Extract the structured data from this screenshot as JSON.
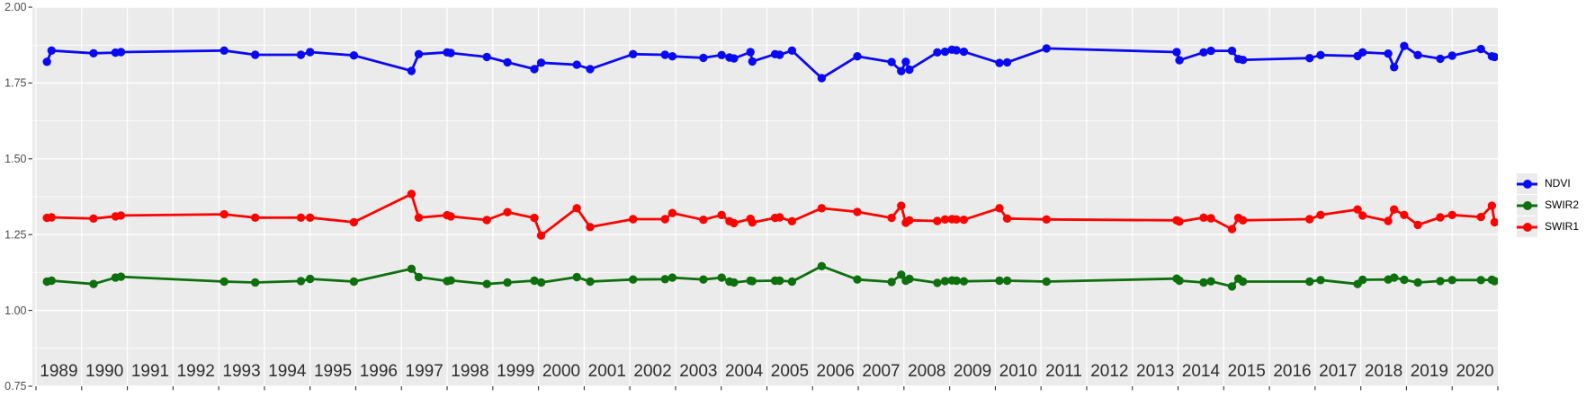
{
  "colors": {
    "page_bg": "#ffffff",
    "panel_bg": "#ebebeb",
    "grid": "#ffffff",
    "tick": "#333333",
    "y_axis_text": "#4d4d4d",
    "x_axis_text": "#2e2e2e",
    "ndvi": "#0a0af2",
    "swir2": "#0d700d",
    "swir1": "#fa0400"
  },
  "legend": {
    "items": [
      {
        "label": "NDVI"
      },
      {
        "label": "SWIR2"
      },
      {
        "label": "SWIR1"
      }
    ]
  },
  "chart_data": {
    "type": "line",
    "title": "",
    "xlabel": "",
    "ylabel": "",
    "grid": "white-on-gray",
    "legend_position": "right",
    "xlim": [
      1989,
      2021
    ],
    "ylim": [
      0.75,
      2.0
    ],
    "y_ticks": [
      0.75,
      1.0,
      1.25,
      1.5,
      1.75,
      2.0
    ],
    "y_tick_labels": [
      "0.75",
      "1.00",
      "1.25",
      "1.50",
      "1.75",
      "2.00"
    ],
    "y_minor_ticks": [
      0.875,
      1.125,
      1.375,
      1.625,
      1.875
    ],
    "x_tick_years": [
      1989,
      1990,
      1991,
      1992,
      1993,
      1994,
      1995,
      1996,
      1997,
      1998,
      1999,
      2000,
      2001,
      2002,
      2003,
      2004,
      2005,
      2006,
      2007,
      2008,
      2009,
      2010,
      2011,
      2012,
      2013,
      2014,
      2015,
      2016,
      2017,
      2018,
      2019,
      2020
    ],
    "x": [
      1989.24,
      1989.34,
      1990.26,
      1990.74,
      1990.86,
      1993.12,
      1993.8,
      1994.8,
      1995.0,
      1995.96,
      1997.22,
      1997.38,
      1998.0,
      1998.08,
      1998.87,
      1999.32,
      1999.91,
      2000.06,
      2000.84,
      2001.13,
      2002.07,
      2002.77,
      2002.93,
      2003.61,
      2004.01,
      2004.18,
      2004.28,
      2004.64,
      2004.68,
      2005.18,
      2005.28,
      2005.55,
      2006.2,
      2006.98,
      2007.73,
      2007.94,
      2008.04,
      2008.12,
      2008.73,
      2008.9,
      2009.05,
      2009.15,
      2009.31,
      2010.09,
      2010.26,
      2011.12,
      2013.97,
      2014.03,
      2014.56,
      2014.72,
      2015.18,
      2015.32,
      2015.42,
      2016.88,
      2017.12,
      2017.93,
      2018.04,
      2018.6,
      2018.73,
      2018.95,
      2019.25,
      2019.74,
      2020.0,
      2020.63,
      2020.87,
      2020.93
    ],
    "series": [
      {
        "name": "NDVI",
        "color": "#0a0af2",
        "values": [
          1.82,
          1.857,
          1.848,
          1.85,
          1.852,
          1.857,
          1.843,
          1.843,
          1.852,
          1.841,
          1.79,
          1.845,
          1.851,
          1.849,
          1.836,
          1.818,
          1.796,
          1.817,
          1.81,
          1.796,
          1.845,
          1.843,
          1.838,
          1.833,
          1.842,
          1.834,
          1.831,
          1.852,
          1.821,
          1.845,
          1.843,
          1.857,
          1.766,
          1.838,
          1.819,
          1.789,
          1.82,
          1.794,
          1.851,
          1.853,
          1.86,
          1.858,
          1.853,
          1.816,
          1.818,
          1.864,
          1.852,
          1.825,
          1.851,
          1.856,
          1.856,
          1.829,
          1.826,
          1.832,
          1.842,
          1.839,
          1.851,
          1.847,
          1.802,
          1.872,
          1.842,
          1.83,
          1.84,
          1.862,
          1.838,
          1.836
        ]
      },
      {
        "name": "SWIR2",
        "color": "#0d700d",
        "values": [
          1.095,
          1.098,
          1.087,
          1.108,
          1.111,
          1.095,
          1.092,
          1.097,
          1.104,
          1.095,
          1.137,
          1.11,
          1.097,
          1.099,
          1.087,
          1.092,
          1.098,
          1.092,
          1.11,
          1.095,
          1.102,
          1.103,
          1.108,
          1.102,
          1.108,
          1.095,
          1.092,
          1.098,
          1.097,
          1.098,
          1.098,
          1.095,
          1.146,
          1.102,
          1.094,
          1.118,
          1.098,
          1.104,
          1.091,
          1.097,
          1.099,
          1.098,
          1.096,
          1.098,
          1.098,
          1.095,
          1.105,
          1.098,
          1.092,
          1.096,
          1.079,
          1.105,
          1.095,
          1.095,
          1.1,
          1.087,
          1.101,
          1.102,
          1.108,
          1.101,
          1.092,
          1.097,
          1.1,
          1.1,
          1.101,
          1.097
        ]
      },
      {
        "name": "SWIR1",
        "color": "#fa0400",
        "values": [
          1.305,
          1.307,
          1.303,
          1.31,
          1.313,
          1.317,
          1.306,
          1.306,
          1.306,
          1.291,
          1.384,
          1.306,
          1.314,
          1.31,
          1.298,
          1.324,
          1.305,
          1.247,
          1.337,
          1.275,
          1.301,
          1.301,
          1.321,
          1.299,
          1.315,
          1.294,
          1.288,
          1.302,
          1.29,
          1.305,
          1.307,
          1.294,
          1.337,
          1.325,
          1.305,
          1.345,
          1.289,
          1.297,
          1.295,
          1.3,
          1.301,
          1.3,
          1.299,
          1.337,
          1.303,
          1.3,
          1.297,
          1.293,
          1.306,
          1.304,
          1.268,
          1.305,
          1.297,
          1.301,
          1.315,
          1.333,
          1.313,
          1.295,
          1.333,
          1.315,
          1.282,
          1.307,
          1.315,
          1.308,
          1.345,
          1.291
        ]
      }
    ]
  }
}
